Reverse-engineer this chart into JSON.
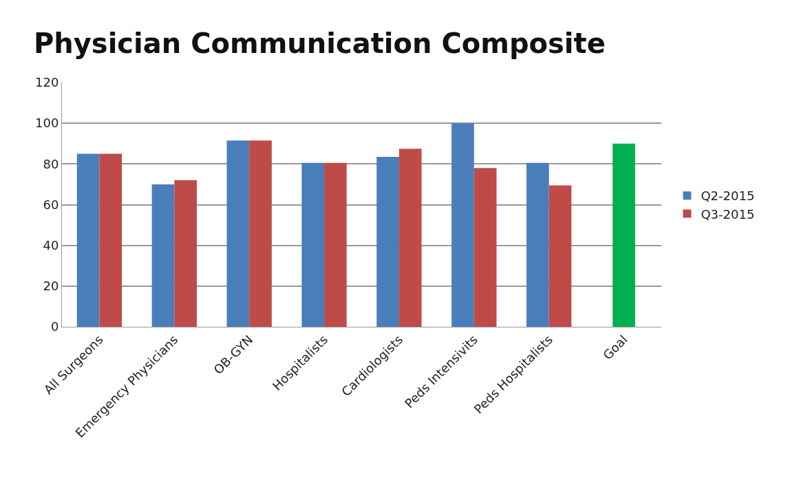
{
  "chart_data": {
    "type": "bar",
    "title": "Physician Communication Composite",
    "categories": [
      "All Surgeons",
      "Emergency Physicians",
      "OB-GYN",
      "Hospitalists",
      "Cardiologists",
      "Peds Intensivits",
      "Peds Hospitalists",
      "Goal"
    ],
    "series": [
      {
        "name": "Q2-2015",
        "color": "#4a7ebb",
        "values": [
          85,
          70,
          91.5,
          80.5,
          83.5,
          100,
          80.5,
          null
        ]
      },
      {
        "name": "Q3-2015",
        "color": "#be4b48",
        "values": [
          85,
          72,
          91.5,
          80.5,
          87.5,
          78,
          69.5,
          null
        ]
      },
      {
        "color": "#00b050",
        "values": [
          null,
          null,
          null,
          null,
          null,
          null,
          null,
          90
        ]
      }
    ],
    "ylim": [
      0,
      120
    ],
    "yticks": [
      0,
      20,
      40,
      60,
      80,
      100,
      120
    ],
    "grid": "y",
    "legend": "right"
  }
}
